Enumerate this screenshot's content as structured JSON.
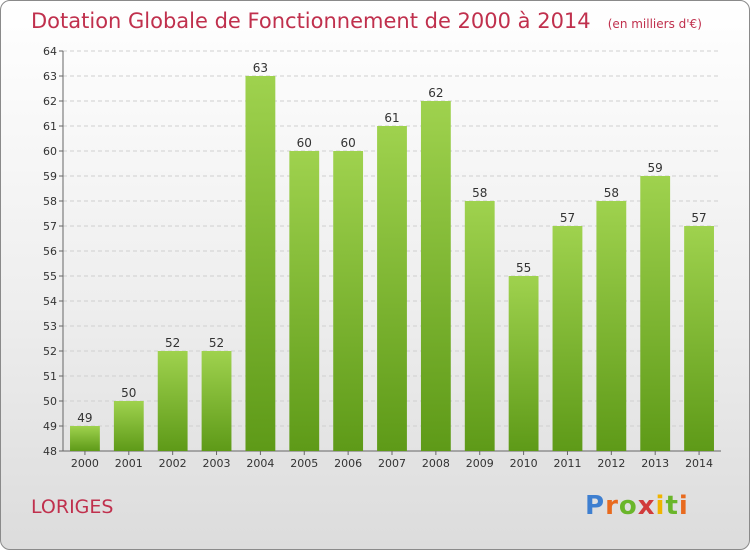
{
  "header": {
    "title": "Dotation Globale de Fonctionnement de 2000 à 2014",
    "subtitle": "(en milliers d'€)"
  },
  "footer": {
    "commune": "LORIGES",
    "logo": "Proxiti"
  },
  "colors": {
    "title": "#c0304d",
    "bar_top": "#9fd24e",
    "bar_bottom": "#5e9a18",
    "grid": "#cfcfcf",
    "axis_text": "#333333"
  },
  "chart_data": {
    "type": "bar",
    "title": "Dotation Globale de Fonctionnement de 2000 à 2014",
    "subtitle": "(en milliers d'€)",
    "xlabel": "",
    "ylabel": "",
    "categories": [
      "2000",
      "2001",
      "2002",
      "2003",
      "2004",
      "2005",
      "2006",
      "2007",
      "2008",
      "2009",
      "2010",
      "2011",
      "2012",
      "2013",
      "2014"
    ],
    "values": [
      49,
      50,
      52,
      52,
      63,
      60,
      60,
      61,
      62,
      58,
      55,
      57,
      58,
      59,
      57
    ],
    "ylim": [
      48,
      64
    ],
    "yticks": [
      48,
      49,
      50,
      51,
      52,
      53,
      54,
      55,
      56,
      57,
      58,
      59,
      60,
      61,
      62,
      63,
      64
    ],
    "grid": "horizontal dashed",
    "data_labels": true
  }
}
